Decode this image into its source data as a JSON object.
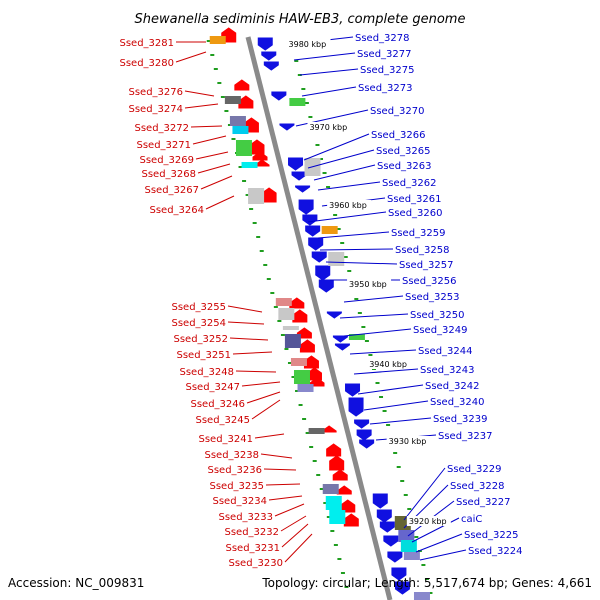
{
  "title": "Shewanella sediminis HAW-EB3, complete genome",
  "accession": "Accession: NC_009831",
  "topology": "Topology: circular; Length: 5,517,674 bp; Genes: 4,661",
  "colors": {
    "forward_label": "#0000cc",
    "reverse_label": "#cc0000",
    "forward_gene": "#1010e0",
    "reverse_gene": "#ff0000",
    "backbone": "#888888",
    "tick": "#1f9d1f"
  },
  "kbp_ticks": [
    "3980 kbp",
    "3970 kbp",
    "3960 kbp",
    "3950 kbp",
    "3940 kbp",
    "3930 kbp",
    "3920 kbp"
  ],
  "forward_labels": [
    "Ssed_3278",
    "Ssed_3277",
    "Ssed_3275",
    "Ssed_3273",
    "Ssed_3270",
    "Ssed_3266",
    "Ssed_3265",
    "Ssed_3263",
    "Ssed_3262",
    "Ssed_3261",
    "Ssed_3260",
    "Ssed_3259",
    "Ssed_3258",
    "Ssed_3257",
    "Ssed_3256",
    "Ssed_3253",
    "Ssed_3250",
    "Ssed_3249",
    "Ssed_3244",
    "Ssed_3243",
    "Ssed_3242",
    "Ssed_3240",
    "Ssed_3239",
    "Ssed_3237",
    "Ssed_3229",
    "Ssed_3228",
    "Ssed_3227",
    "caiC",
    "Ssed_3225",
    "Ssed_3224"
  ],
  "reverse_labels": [
    "Ssed_3281",
    "Ssed_3280",
    "Ssed_3276",
    "Ssed_3274",
    "Ssed_3272",
    "Ssed_3271",
    "Ssed_3269",
    "Ssed_3268",
    "Ssed_3267",
    "Ssed_3264",
    "Ssed_3255",
    "Ssed_3254",
    "Ssed_3252",
    "Ssed_3251",
    "Ssed_3248",
    "Ssed_3247",
    "Ssed_3246",
    "Ssed_3245",
    "Ssed_3241",
    "Ssed_3238",
    "Ssed_3236",
    "Ssed_3235",
    "Ssed_3234",
    "Ssed_3233",
    "Ssed_3232",
    "Ssed_3231",
    "Ssed_3230"
  ]
}
